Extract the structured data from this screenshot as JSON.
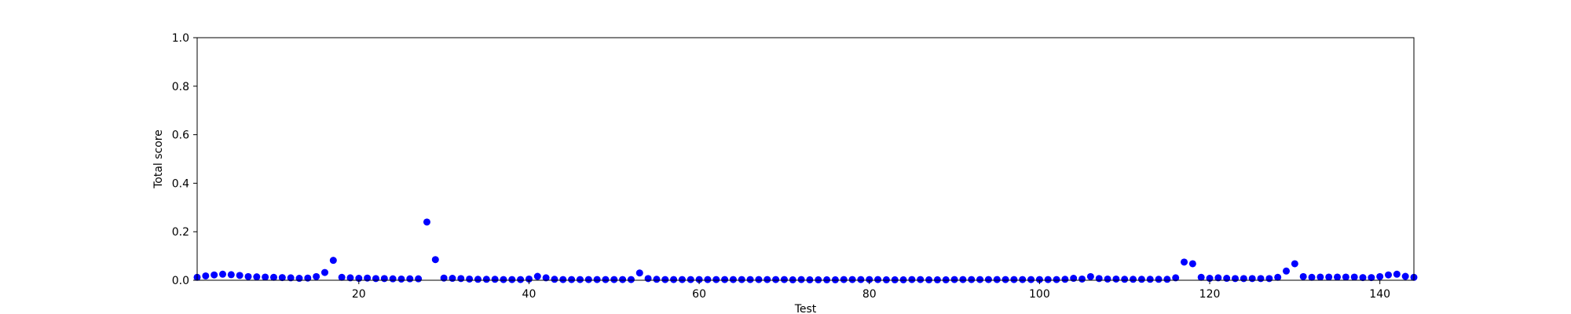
{
  "chart_data": {
    "type": "scatter",
    "xlabel": "Test",
    "ylabel": "Total score",
    "xlim": [
      1,
      144
    ],
    "ylim": [
      0,
      1.0
    ],
    "xticks": [
      20,
      40,
      60,
      80,
      100,
      120,
      140
    ],
    "yticks": [
      0.0,
      0.2,
      0.4,
      0.6,
      0.8,
      1.0
    ],
    "xtick_labels": [
      "20",
      "40",
      "60",
      "80",
      "100",
      "120",
      "140"
    ],
    "ytick_labels": [
      "0.0",
      "0.2",
      "0.4",
      "0.6",
      "0.8",
      "1.0"
    ],
    "grid": false,
    "marker_color": "#0000ff",
    "series": [
      {
        "x": [
          1,
          2,
          3,
          4,
          5,
          6,
          7,
          8,
          9,
          10,
          11,
          12,
          13,
          14,
          15,
          16,
          17,
          18,
          19,
          20,
          21,
          22,
          23,
          24,
          25,
          26,
          27,
          28,
          29,
          30,
          31,
          32,
          33,
          34,
          35,
          36,
          37,
          38,
          39,
          40,
          41,
          42,
          43,
          44,
          45,
          46,
          47,
          48,
          49,
          50,
          51,
          52,
          53,
          54,
          55,
          56,
          57,
          58,
          59,
          60,
          61,
          62,
          63,
          64,
          65,
          66,
          67,
          68,
          69,
          70,
          71,
          72,
          73,
          74,
          75,
          76,
          77,
          78,
          79,
          80,
          81,
          82,
          83,
          84,
          85,
          86,
          87,
          88,
          89,
          90,
          91,
          92,
          93,
          94,
          95,
          96,
          97,
          98,
          99,
          100,
          101,
          102,
          103,
          104,
          105,
          106,
          107,
          108,
          109,
          110,
          111,
          112,
          113,
          114,
          115,
          116,
          117,
          118,
          119,
          120,
          121,
          122,
          123,
          124,
          125,
          126,
          127,
          128,
          129,
          130,
          131,
          132,
          133,
          134,
          135,
          136,
          137,
          138,
          139,
          140,
          141,
          142,
          143,
          144
        ],
        "y": [
          0.012,
          0.018,
          0.022,
          0.025,
          0.023,
          0.02,
          0.015,
          0.014,
          0.013,
          0.012,
          0.011,
          0.01,
          0.008,
          0.009,
          0.015,
          0.032,
          0.082,
          0.012,
          0.01,
          0.008,
          0.009,
          0.007,
          0.007,
          0.006,
          0.005,
          0.006,
          0.006,
          0.24,
          0.085,
          0.009,
          0.008,
          0.007,
          0.005,
          0.004,
          0.004,
          0.004,
          0.003,
          0.003,
          0.003,
          0.005,
          0.016,
          0.01,
          0.004,
          0.003,
          0.003,
          0.003,
          0.003,
          0.003,
          0.003,
          0.003,
          0.003,
          0.003,
          0.03,
          0.007,
          0.004,
          0.003,
          0.003,
          0.003,
          0.003,
          0.003,
          0.003,
          0.003,
          0.003,
          0.003,
          0.003,
          0.003,
          0.003,
          0.003,
          0.003,
          0.003,
          0.002,
          0.003,
          0.002,
          0.002,
          0.002,
          0.002,
          0.003,
          0.003,
          0.003,
          0.003,
          0.003,
          0.002,
          0.002,
          0.002,
          0.003,
          0.003,
          0.002,
          0.002,
          0.002,
          0.003,
          0.003,
          0.003,
          0.003,
          0.003,
          0.003,
          0.003,
          0.003,
          0.003,
          0.003,
          0.003,
          0.003,
          0.003,
          0.004,
          0.008,
          0.005,
          0.015,
          0.007,
          0.005,
          0.005,
          0.004,
          0.004,
          0.004,
          0.004,
          0.004,
          0.004,
          0.01,
          0.075,
          0.068,
          0.012,
          0.008,
          0.01,
          0.008,
          0.007,
          0.007,
          0.007,
          0.007,
          0.007,
          0.012,
          0.038,
          0.068,
          0.015,
          0.012,
          0.013,
          0.013,
          0.013,
          0.013,
          0.013,
          0.011,
          0.011,
          0.015,
          0.022,
          0.025,
          0.016,
          0.012
        ]
      }
    ]
  }
}
